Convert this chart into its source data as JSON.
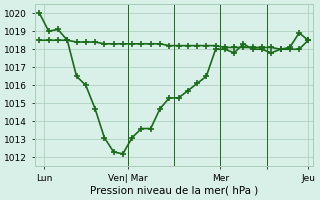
{
  "line1_x": [
    0,
    1,
    2,
    3,
    4,
    5,
    6,
    7,
    8,
    9,
    10,
    11,
    12,
    13,
    14,
    15,
    16,
    17,
    18,
    19,
    20,
    21,
    22,
    23,
    24,
    25,
    26,
    27,
    28,
    29
  ],
  "line1_y": [
    1020.0,
    1019.0,
    1019.1,
    1018.5,
    1016.5,
    1016.0,
    1014.7,
    1013.1,
    1012.3,
    1012.2,
    1013.1,
    1013.6,
    1013.6,
    1014.7,
    1015.3,
    1015.3,
    1015.7,
    1016.1,
    1016.5,
    1018.0,
    1018.0,
    1017.8,
    1018.3,
    1018.0,
    1018.0,
    1017.8,
    1018.0,
    1018.1,
    1018.9,
    1018.5
  ],
  "line2_x": [
    0,
    1,
    2,
    3,
    4,
    5,
    6,
    7,
    8,
    9,
    10,
    11,
    12,
    13,
    14,
    15,
    16,
    17,
    18,
    19,
    20,
    21,
    22,
    23,
    24,
    25,
    26,
    27,
    28,
    29
  ],
  "line2_y": [
    1018.5,
    1018.5,
    1018.5,
    1018.5,
    1018.4,
    1018.4,
    1018.4,
    1018.3,
    1018.3,
    1018.3,
    1018.3,
    1018.3,
    1018.3,
    1018.3,
    1018.2,
    1018.2,
    1018.2,
    1018.2,
    1018.2,
    1018.2,
    1018.1,
    1018.1,
    1018.1,
    1018.1,
    1018.1,
    1018.1,
    1018.0,
    1018.0,
    1018.0,
    1018.5
  ],
  "xtick_positions": [
    0.5,
    9.5,
    14.5,
    19.5,
    24.5,
    29
  ],
  "xtick_labels": [
    "Lun",
    "",
    "Ven| Mar",
    "",
    "Mer",
    "Jeu"
  ],
  "ytick_positions": [
    1012,
    1013,
    1014,
    1015,
    1016,
    1017,
    1018,
    1019,
    1020
  ],
  "ytick_labels": [
    "1012",
    "1013",
    "1014",
    "1015",
    "1016",
    "1017",
    "1018",
    "1019",
    "1020"
  ],
  "xlabel": "Pression niveau de la mer( hPa )",
  "ylim": [
    1011.5,
    1020.5
  ],
  "xlim": [
    -0.5,
    29.5
  ],
  "line_color": "#1a6b1a",
  "bg_color": "#d8f0e8",
  "grid_color": "#aaccbb",
  "marker": "+",
  "markersize": 5,
  "linewidth": 1.2,
  "vline_positions": [
    9.5,
    14.5,
    19.5,
    24.5
  ]
}
